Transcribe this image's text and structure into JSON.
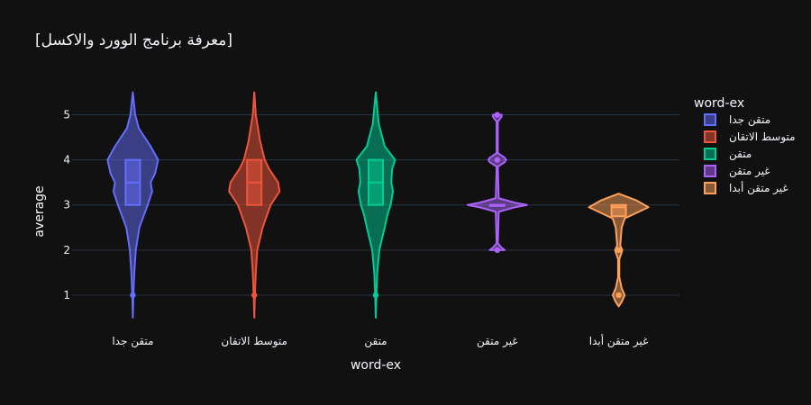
{
  "chart_data": {
    "type": "violin",
    "title": "[معرفة برنامج الوورد والاكسل]",
    "xlabel": "word-ex",
    "ylabel": "average",
    "ylim": [
      0.4,
      5.55
    ],
    "yticks": [
      1,
      2,
      3,
      4,
      5
    ],
    "categories": [
      "متقن جدا",
      "متوسط الاتقان",
      "متقن",
      "غير متقن",
      "غير متقن أبدا"
    ],
    "legend": {
      "title": "word-ex",
      "position": "right"
    },
    "grid": true,
    "series": [
      {
        "name": "متقن جدا",
        "color": "#636efa",
        "range": [
          0.5,
          5.5
        ],
        "box": {
          "q1": 3,
          "median": 3.5,
          "q3": 4
        },
        "points": [
          1
        ],
        "density": [
          [
            0.5,
            0
          ],
          [
            1,
            0.02
          ],
          [
            1.5,
            0.05
          ],
          [
            2,
            0.1
          ],
          [
            2.5,
            0.22
          ],
          [
            3,
            0.5
          ],
          [
            3.3,
            0.65
          ],
          [
            3.5,
            0.6
          ],
          [
            3.7,
            0.75
          ],
          [
            4,
            0.85
          ],
          [
            4.3,
            0.6
          ],
          [
            4.7,
            0.2
          ],
          [
            5,
            0.08
          ],
          [
            5.5,
            0
          ]
        ]
      },
      {
        "name": "متوسط الاتقان",
        "color": "#ef553b",
        "range": [
          0.5,
          5.5
        ],
        "box": {
          "q1": 3,
          "median": 3.5,
          "q3": 4
        },
        "points": [
          1
        ],
        "density": [
          [
            0.5,
            0
          ],
          [
            1,
            0.02
          ],
          [
            1.5,
            0.05
          ],
          [
            2,
            0.1
          ],
          [
            2.5,
            0.28
          ],
          [
            3,
            0.55
          ],
          [
            3.3,
            0.85
          ],
          [
            3.5,
            0.8
          ],
          [
            3.8,
            0.5
          ],
          [
            4,
            0.35
          ],
          [
            4.4,
            0.2
          ],
          [
            5,
            0.05
          ],
          [
            5.5,
            0
          ]
        ]
      },
      {
        "name": "متقن",
        "color": "#00cc96",
        "range": [
          0.5,
          5.5
        ],
        "box": {
          "q1": 3,
          "median": 3.5,
          "q3": 4
        },
        "points": [
          1
        ],
        "density": [
          [
            0.5,
            0
          ],
          [
            1,
            0.02
          ],
          [
            1.5,
            0.05
          ],
          [
            2,
            0.12
          ],
          [
            2.5,
            0.3
          ],
          [
            2.8,
            0.4
          ],
          [
            3,
            0.5
          ],
          [
            3.3,
            0.58
          ],
          [
            3.5,
            0.52
          ],
          [
            3.8,
            0.55
          ],
          [
            4,
            0.65
          ],
          [
            4.3,
            0.3
          ],
          [
            4.8,
            0.1
          ],
          [
            5.5,
            0
          ]
        ]
      },
      {
        "name": "غير متقن",
        "color": "#ab63fa",
        "range": [
          2,
          5
        ],
        "box": {
          "q1": 3,
          "median": 3,
          "q3": 3
        },
        "points": [
          2,
          4,
          5
        ],
        "density": [
          [
            2,
            0.25
          ],
          [
            2.05,
            0.15
          ],
          [
            2.15,
            0.02
          ],
          [
            2.85,
            0.05
          ],
          [
            2.95,
            0.6
          ],
          [
            3,
            1
          ],
          [
            3.05,
            0.6
          ],
          [
            3.15,
            0.05
          ],
          [
            3.85,
            0.02
          ],
          [
            3.95,
            0.25
          ],
          [
            4,
            0.3
          ],
          [
            4.05,
            0.25
          ],
          [
            4.15,
            0.02
          ],
          [
            4.85,
            0.02
          ],
          [
            4.95,
            0.14
          ],
          [
            5,
            0.15
          ]
        ]
      },
      {
        "name": "غير متقن أبدا",
        "color": "#ffa15a",
        "range": [
          0.75,
          3.25
        ],
        "box": {
          "q1": 2.75,
          "median": 2.95,
          "q3": 3
        },
        "points": [
          1,
          2
        ],
        "density": [
          [
            0.75,
            0
          ],
          [
            0.85,
            0.1
          ],
          [
            1,
            0.2
          ],
          [
            1.15,
            0.1
          ],
          [
            1.4,
            0.02
          ],
          [
            1.8,
            0.02
          ],
          [
            1.95,
            0.1
          ],
          [
            2,
            0.12
          ],
          [
            2.1,
            0.05
          ],
          [
            2.5,
            0.1
          ],
          [
            2.7,
            0.2
          ],
          [
            2.95,
            1
          ],
          [
            3.1,
            0.6
          ],
          [
            3.25,
            0
          ]
        ]
      }
    ]
  }
}
